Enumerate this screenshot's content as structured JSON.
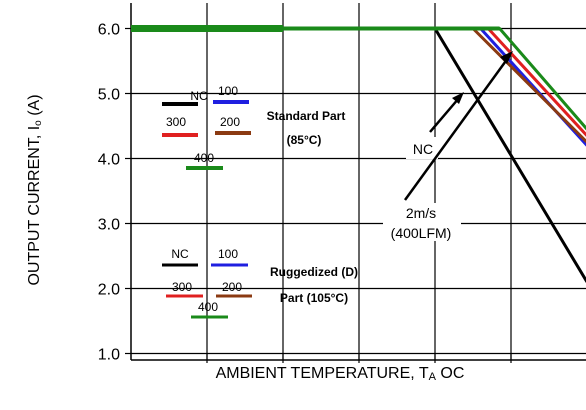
{
  "chart_data": {
    "type": "line",
    "xlabel_main": "AMBIENT TEMPERATURE, T",
    "xlabel_sub": "A",
    "xlabel_unit": " OC",
    "ylabel_main": "OUTPUT CURRENT, I",
    "ylabel_sub": "o",
    "ylabel_unit": " (A)",
    "ylim": [
      1.0,
      6.2
    ],
    "yticks": [
      "1.0",
      "2.0",
      "3.0",
      "4.0",
      "5.0",
      "6.0"
    ],
    "grid": true,
    "series": [
      {
        "name": "NC",
        "color": "#000000",
        "x": [
          0,
          4.0,
          6.0
        ],
        "y": [
          6.0,
          6.0,
          2.1
        ]
      },
      {
        "name": "100",
        "color": "#1f1fe0",
        "x": [
          0,
          4.6,
          6.0
        ],
        "y": [
          6.0,
          6.0,
          4.2
        ]
      },
      {
        "name": "200",
        "color": "#8b3a12",
        "x": [
          0,
          4.5,
          6.0
        ],
        "y": [
          6.0,
          6.0,
          4.25
        ]
      },
      {
        "name": "300",
        "color": "#e02020",
        "x": [
          0,
          4.7,
          6.0
        ],
        "y": [
          6.0,
          6.0,
          4.35
        ]
      },
      {
        "name": "400",
        "color": "#1a8a1a",
        "x": [
          0,
          4.85,
          6.0
        ],
        "y": [
          6.0,
          6.0,
          4.45
        ]
      }
    ],
    "legends": [
      {
        "title_line1": "Standard Part",
        "title_line2": "(85°C)",
        "items": [
          {
            "label": "NC",
            "color": "#000000"
          },
          {
            "label": "100",
            "color": "#1f1fe0"
          },
          {
            "label": "300",
            "color": "#e02020"
          },
          {
            "label": "200",
            "color": "#8b3a12"
          },
          {
            "label": "400",
            "color": "#1a8a1a"
          }
        ]
      },
      {
        "title_line1": "Ruggedized (D)",
        "title_line2": "Part (105°C)",
        "items": [
          {
            "label": "NC",
            "color": "#000000"
          },
          {
            "label": "100",
            "color": "#1f1fe0"
          },
          {
            "label": "300",
            "color": "#e02020"
          },
          {
            "label": "200",
            "color": "#8b3a12"
          },
          {
            "label": "400",
            "color": "#1a8a1a"
          }
        ]
      }
    ],
    "annotations": [
      {
        "text": "NC"
      },
      {
        "text": "2m/s"
      },
      {
        "text": "(400LFM)"
      }
    ]
  }
}
